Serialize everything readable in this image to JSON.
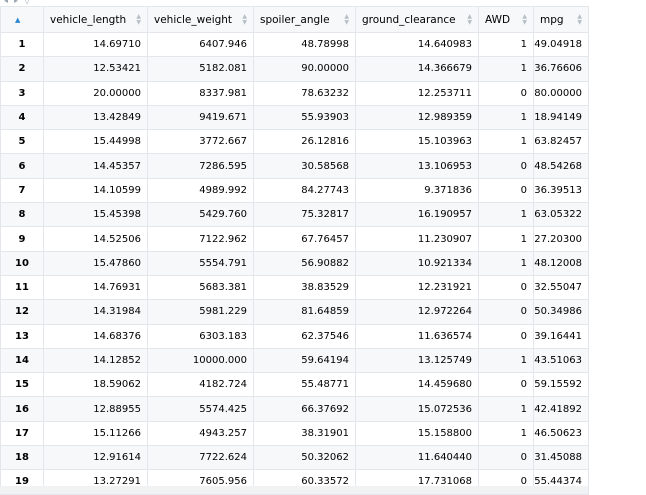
{
  "columns": [
    "vehicle_length",
    "vehicle_weight",
    "spoiler_angle",
    "ground_clearance",
    "AWD",
    "mpg"
  ],
  "rows": [
    {
      "n": "1",
      "c": [
        "14.69710",
        "6407.946",
        "48.78998",
        "14.640983",
        "1",
        "49.04918"
      ]
    },
    {
      "n": "2",
      "c": [
        "12.53421",
        "5182.081",
        "90.00000",
        "14.366679",
        "1",
        "36.76606"
      ]
    },
    {
      "n": "3",
      "c": [
        "20.00000",
        "8337.981",
        "78.63232",
        "12.253711",
        "0",
        "80.00000"
      ]
    },
    {
      "n": "4",
      "c": [
        "13.42849",
        "9419.671",
        "55.93903",
        "12.989359",
        "1",
        "18.94149"
      ]
    },
    {
      "n": "5",
      "c": [
        "15.44998",
        "3772.667",
        "26.12816",
        "15.103963",
        "1",
        "63.82457"
      ]
    },
    {
      "n": "6",
      "c": [
        "14.45357",
        "7286.595",
        "30.58568",
        "13.106953",
        "0",
        "48.54268"
      ]
    },
    {
      "n": "7",
      "c": [
        "14.10599",
        "4989.992",
        "84.27743",
        "9.371836",
        "0",
        "36.39513"
      ]
    },
    {
      "n": "8",
      "c": [
        "15.45398",
        "5429.760",
        "75.32817",
        "16.190957",
        "1",
        "63.05322"
      ]
    },
    {
      "n": "9",
      "c": [
        "14.52506",
        "7122.962",
        "67.76457",
        "11.230907",
        "1",
        "27.20300"
      ]
    },
    {
      "n": "10",
      "c": [
        "15.47860",
        "5554.791",
        "56.90882",
        "10.921334",
        "1",
        "48.12008"
      ]
    },
    {
      "n": "11",
      "c": [
        "14.76931",
        "5683.381",
        "38.83529",
        "12.231921",
        "0",
        "32.55047"
      ]
    },
    {
      "n": "12",
      "c": [
        "14.31984",
        "5981.229",
        "81.64859",
        "12.972264",
        "0",
        "50.34986"
      ]
    },
    {
      "n": "13",
      "c": [
        "14.68376",
        "6303.183",
        "62.37546",
        "11.636574",
        "0",
        "39.16441"
      ]
    },
    {
      "n": "14",
      "c": [
        "14.12852",
        "10000.000",
        "59.64194",
        "13.125749",
        "1",
        "43.51063"
      ]
    },
    {
      "n": "15",
      "c": [
        "18.59062",
        "4182.724",
        "55.48771",
        "14.459680",
        "0",
        "59.15592"
      ]
    },
    {
      "n": "16",
      "c": [
        "12.88955",
        "5574.425",
        "66.37692",
        "15.072536",
        "1",
        "42.41892"
      ]
    },
    {
      "n": "17",
      "c": [
        "15.11266",
        "4943.257",
        "38.31901",
        "15.158800",
        "1",
        "46.50623"
      ]
    },
    {
      "n": "18",
      "c": [
        "12.91614",
        "7722.624",
        "50.32062",
        "11.640440",
        "0",
        "31.45088"
      ]
    },
    {
      "n": "19",
      "c": [
        "13.27291",
        "7605.956",
        "60.33572",
        "17.731068",
        "0",
        "55.44374"
      ]
    }
  ]
}
